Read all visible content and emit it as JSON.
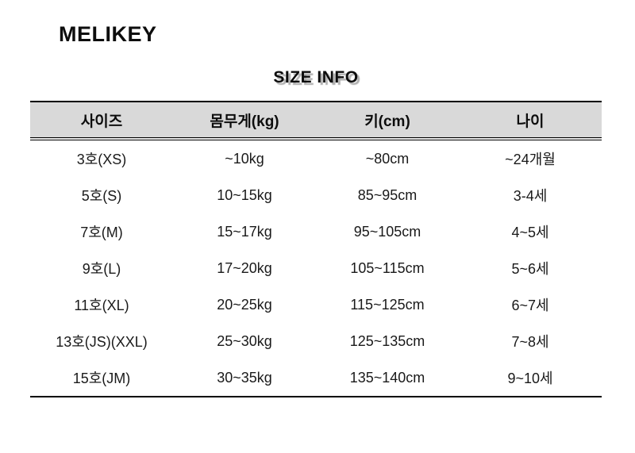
{
  "brand": "MELIKEY",
  "title": "SIZE INFO",
  "colors": {
    "header_bg": "#d9d9d9",
    "text": "#1a1a1a",
    "border": "#000000",
    "title_shadow": "#b0b0b0"
  },
  "table": {
    "headers": [
      "사이즈",
      "몸무게(kg)",
      "키(cm)",
      "나이"
    ],
    "rows": [
      [
        "3호(XS)",
        "~10kg",
        "~80cm",
        "~24개월"
      ],
      [
        "5호(S)",
        "10~15kg",
        "85~95cm",
        "3-4세"
      ],
      [
        "7호(M)",
        "15~17kg",
        "95~105cm",
        "4~5세"
      ],
      [
        "9호(L)",
        "17~20kg",
        "105~115cm",
        "5~6세"
      ],
      [
        "11호(XL)",
        "20~25kg",
        "115~125cm",
        "6~7세"
      ],
      [
        "13호(JS)(XXL)",
        "25~30kg",
        "125~135cm",
        "7~8세"
      ],
      [
        "15호(JM)",
        "30~35kg",
        "135~140cm",
        "9~10세"
      ]
    ]
  }
}
